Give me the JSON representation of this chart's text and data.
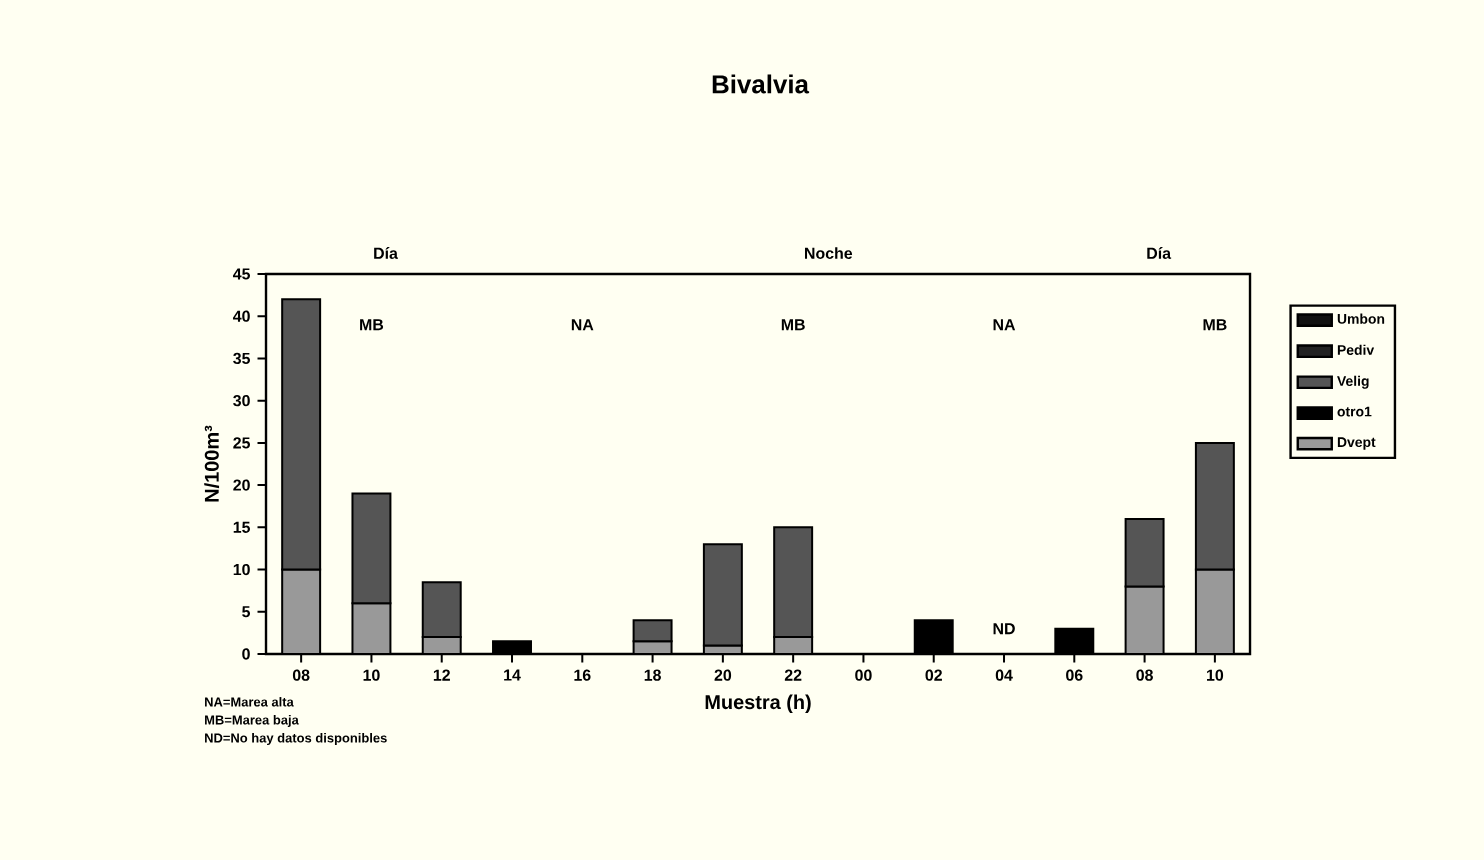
{
  "chart_data": {
    "type": "bar",
    "stacked": true,
    "title": "Bivalvia",
    "xlabel": "Muestra (h)",
    "ylabel": "N/100m³",
    "categories": [
      "08",
      "10",
      "12",
      "14",
      "16",
      "18",
      "20",
      "22",
      "00",
      "02",
      "04",
      "06",
      "08",
      "10"
    ],
    "series": [
      {
        "name": "Dvept",
        "color": "#999999",
        "values": [
          10,
          6,
          2,
          null,
          null,
          1.5,
          1,
          2,
          null,
          null,
          null,
          null,
          8,
          10
        ]
      },
      {
        "name": "otro1",
        "color": "#000000",
        "values": [
          null,
          null,
          null,
          1.5,
          null,
          null,
          null,
          null,
          null,
          4,
          null,
          3,
          null,
          null
        ]
      },
      {
        "name": "Velig",
        "color": "#555555",
        "values": [
          32,
          13,
          6.5,
          null,
          null,
          2.5,
          12,
          13,
          null,
          null,
          null,
          null,
          8,
          15
        ]
      },
      {
        "name": "Pediv",
        "color": "#222222",
        "values": [
          null,
          null,
          null,
          null,
          null,
          null,
          null,
          null,
          null,
          null,
          null,
          null,
          null,
          null
        ]
      },
      {
        "name": "Umbon",
        "color": "#111111",
        "values": [
          null,
          null,
          null,
          null,
          null,
          null,
          null,
          null,
          null,
          null,
          null,
          null,
          null,
          null
        ]
      }
    ],
    "ylim": [
      0,
      45
    ],
    "yticks": [
      0,
      5,
      10,
      15,
      20,
      25,
      30,
      35,
      40,
      45
    ],
    "legend": "right",
    "grid": false,
    "annotations": [
      "Día",
      "Noche",
      "Día",
      "NA=Marea alta",
      "MB=Marea baja",
      "ND=No hay datos disponibles",
      "MB",
      "NA",
      "MB",
      "ND",
      "NA",
      "MB"
    ]
  }
}
